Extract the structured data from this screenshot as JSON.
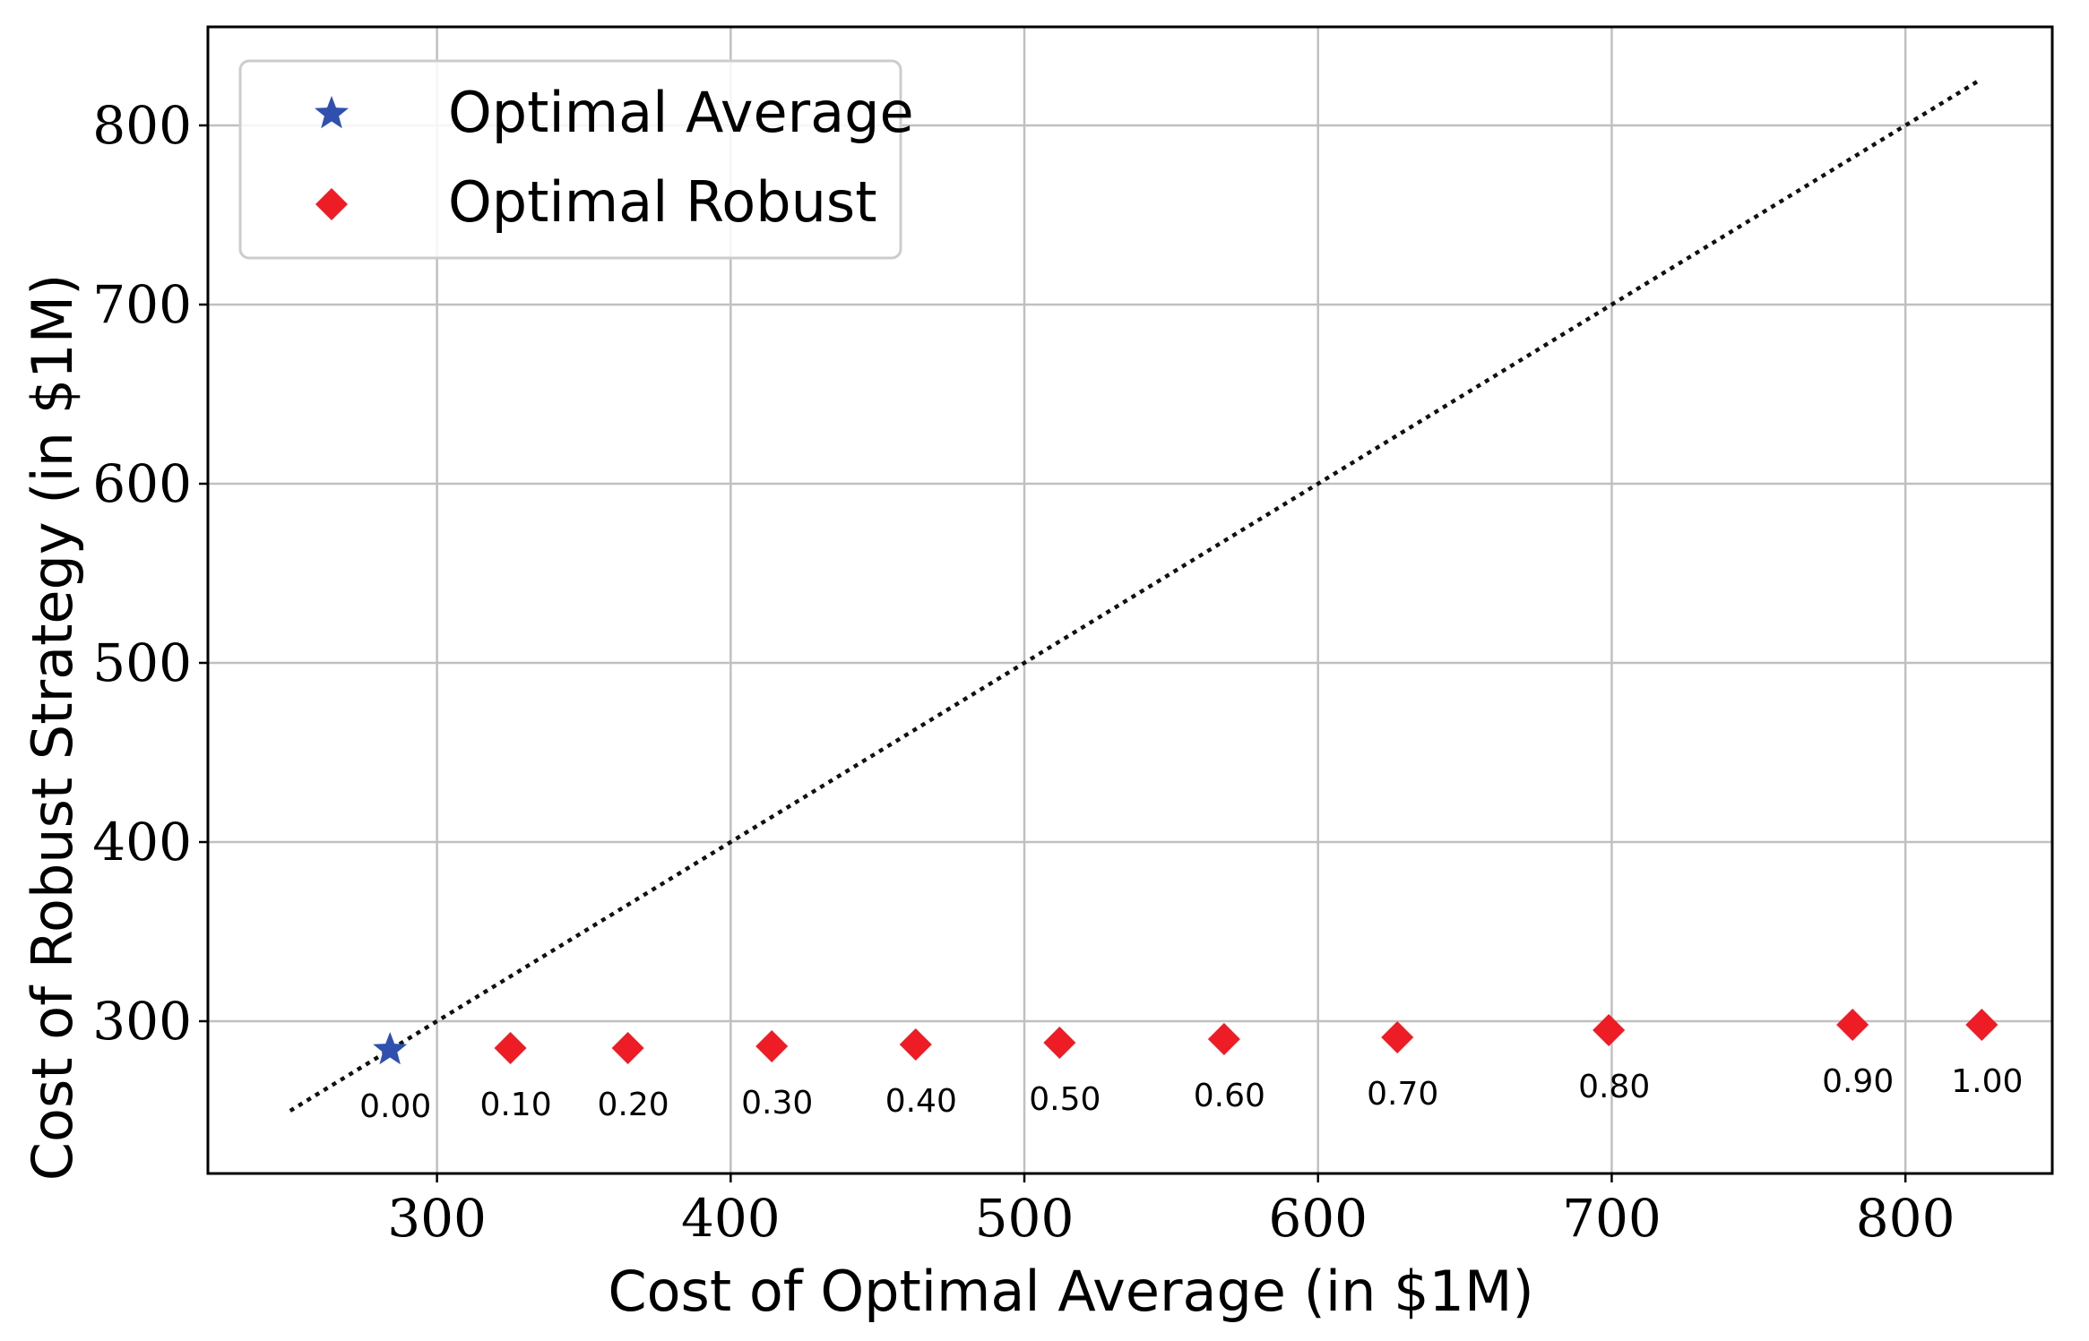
{
  "chart_data": {
    "type": "scatter",
    "title": "",
    "xlabel": "Cost of Optimal Average (in $1M)",
    "ylabel": "Cost of Robust Strategy (in $1M)",
    "xlim": [
      222,
      850
    ],
    "ylim": [
      215,
      855
    ],
    "xticks": [
      300,
      400,
      500,
      600,
      700,
      800
    ],
    "yticks": [
      300,
      400,
      500,
      600,
      700,
      800
    ],
    "grid": true,
    "legend_position": "top-left",
    "reference_line": {
      "style": "dotted",
      "color": "#111111",
      "x": [
        250,
        825
      ],
      "y": [
        250,
        825
      ]
    },
    "series": [
      {
        "name": "Optimal Average",
        "marker": "star",
        "color": "#3050b0",
        "points": [
          {
            "x": 284,
            "y": 284,
            "label": "0.00"
          }
        ]
      },
      {
        "name": "Optimal Robust",
        "marker": "diamond",
        "color": "#ee1c25",
        "points": [
          {
            "x": 325,
            "y": 285,
            "label": "0.10"
          },
          {
            "x": 365,
            "y": 285,
            "label": "0.20"
          },
          {
            "x": 414,
            "y": 286,
            "label": "0.30"
          },
          {
            "x": 463,
            "y": 287,
            "label": "0.40"
          },
          {
            "x": 512,
            "y": 288,
            "label": "0.50"
          },
          {
            "x": 568,
            "y": 290,
            "label": "0.60"
          },
          {
            "x": 627,
            "y": 291,
            "label": "0.70"
          },
          {
            "x": 699,
            "y": 295,
            "label": "0.80"
          },
          {
            "x": 782,
            "y": 298,
            "label": "0.90"
          },
          {
            "x": 826,
            "y": 298,
            "label": "1.00"
          }
        ]
      }
    ]
  }
}
